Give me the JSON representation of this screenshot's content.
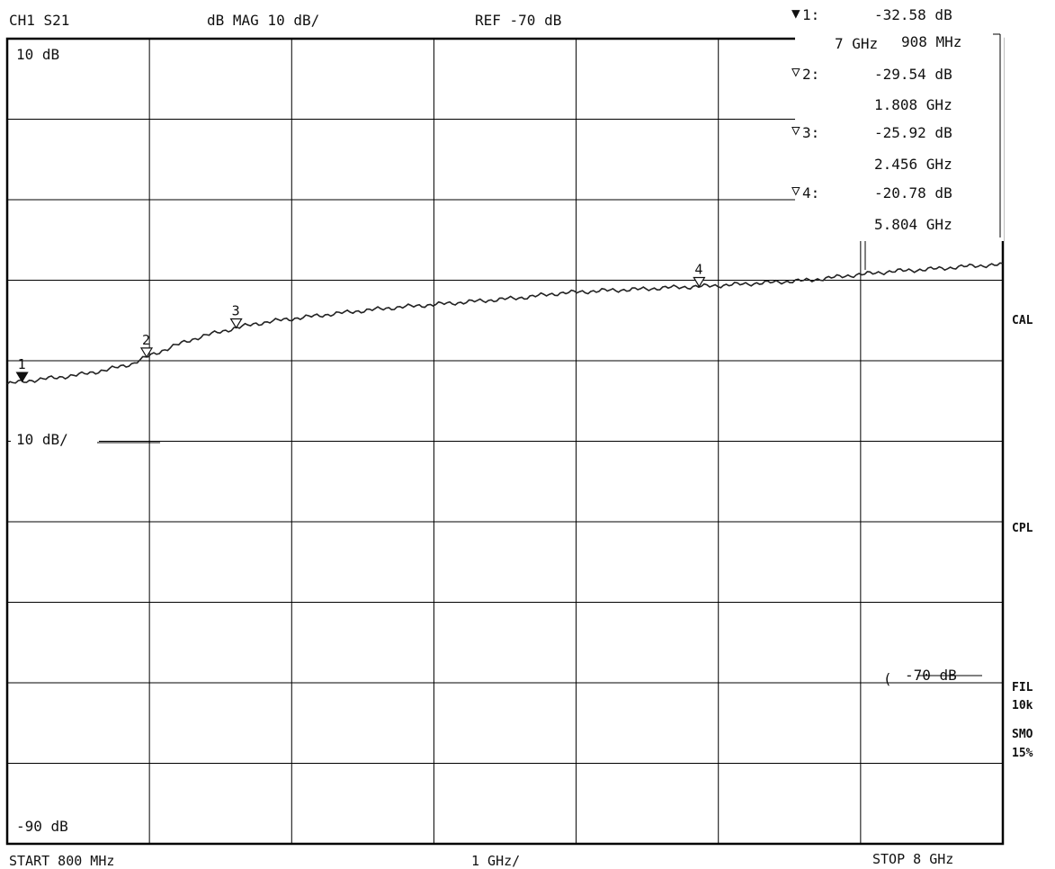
{
  "header": {
    "channel": "CH1 S21",
    "format": "dB  MAG 10 dB/",
    "reference": "REF -70 dB"
  },
  "markers": [
    {
      "num": "1",
      "symbol": "▼",
      "value": "-32.58 dB",
      "freq": "908 MHz",
      "freq_prefix": "7 GHz"
    },
    {
      "num": "2",
      "symbol": "▽",
      "value": "-29.54 dB",
      "freq": "1.808 GHz"
    },
    {
      "num": "3",
      "symbol": "▽",
      "value": "-25.92 dB",
      "freq": "2.456 GHz"
    },
    {
      "num": "4",
      "symbol": "▽",
      "value": "-20.78 dB",
      "freq": "5.804 GHz"
    }
  ],
  "inside_labels": {
    "top": "10 dB",
    "scale": "10 dB/",
    "bottom": "-90 dB",
    "ref_value": "-70 dB",
    "ref_arrow": "("
  },
  "footer": {
    "start": "START  800 MHz",
    "div": "1 GHz/",
    "stop": "STOP 8 GHz"
  },
  "side_labels": [
    "CAL",
    "CPL",
    "FIL",
    "10k",
    "SMO",
    "15%"
  ],
  "chart_data": {
    "type": "line",
    "xlabel": "",
    "ylabel": "",
    "xlim": [
      0.8,
      8.0
    ],
    "ylim": [
      -90,
      10
    ],
    "x_unit": "GHz",
    "y_unit": "dB",
    "y_div": 10,
    "x_div": 1,
    "grid": true,
    "series": [
      {
        "x": [
          0.8,
          0.908,
          1.1,
          1.3,
          1.5,
          1.7,
          1.808,
          2.0,
          2.2,
          2.456,
          2.6,
          2.8,
          3.0,
          3.3,
          3.6,
          3.9,
          4.2,
          4.5,
          4.8,
          5.1,
          5.4,
          5.6,
          5.804,
          6.0,
          6.3,
          6.6,
          6.9,
          7.2,
          7.5,
          7.8,
          8.0
        ],
        "y": [
          -32.9,
          -32.58,
          -32.2,
          -31.8,
          -31.2,
          -30.4,
          -29.54,
          -28.2,
          -27.0,
          -25.92,
          -25.4,
          -24.9,
          -24.5,
          -23.9,
          -23.4,
          -23.0,
          -22.6,
          -22.2,
          -21.6,
          -21.3,
          -21.1,
          -20.9,
          -20.78,
          -20.6,
          -20.3,
          -20.0,
          -19.4,
          -18.9,
          -18.6,
          -18.2,
          -18.1
        ]
      }
    ]
  }
}
